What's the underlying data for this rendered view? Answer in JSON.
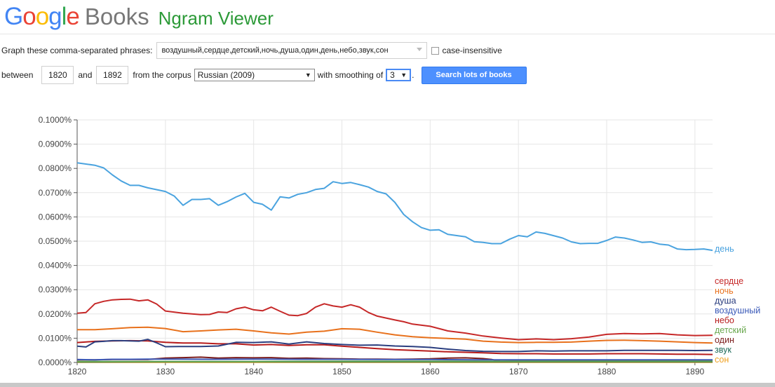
{
  "header": {
    "logo_letters": [
      {
        "ch": "G",
        "color": "#4285f4"
      },
      {
        "ch": "o",
        "color": "#ea4335"
      },
      {
        "ch": "o",
        "color": "#fbbc05"
      },
      {
        "ch": "g",
        "color": "#4285f4"
      },
      {
        "ch": "l",
        "color": "#34a853"
      },
      {
        "ch": "e",
        "color": "#ea4335"
      }
    ],
    "books": "Books",
    "ngram": "Ngram Viewer"
  },
  "controls": {
    "graph_label": "Graph these comma-separated phrases:",
    "phrases_value": "воздушный,сердце,детский,ночь,душа,один,день,небо,звук,сон",
    "case_label": "case-insensitive",
    "between_label": "between",
    "year_start": "1820",
    "and_label": "and",
    "year_end": "1892",
    "corpus_label": "from the corpus",
    "corpus_value": "Russian (2009)",
    "smoothing_label": "with smoothing of",
    "smoothing_value": "3",
    "period": ".",
    "search_button": "Search lots of books"
  },
  "chart_data": {
    "type": "line",
    "xlim": [
      1820,
      1892
    ],
    "ylim": [
      0,
      0.1
    ],
    "y_ticks": [
      "0.0000%",
      "0.0100%",
      "0.0200%",
      "0.0300%",
      "0.0400%",
      "0.0500%",
      "0.0600%",
      "0.0700%",
      "0.0800%",
      "0.0900%",
      "0.1000%"
    ],
    "x_ticks": [
      "1820",
      "1830",
      "1840",
      "1850",
      "1860",
      "1870",
      "1880",
      "1890"
    ],
    "grid": true,
    "legend": "right, at line ends",
    "series": [
      {
        "name": "день",
        "color": "#4aa3df",
        "x": [
          1820,
          1822,
          1823,
          1824,
          1825,
          1826,
          1827,
          1828,
          1830,
          1831,
          1832,
          1833,
          1834,
          1835,
          1836,
          1837,
          1838,
          1839,
          1840,
          1841,
          1842,
          1843,
          1844,
          1845,
          1846,
          1847,
          1848,
          1849,
          1850,
          1851,
          1852,
          1853,
          1854,
          1855,
          1856,
          1857,
          1858,
          1859,
          1860,
          1861,
          1862,
          1864,
          1865,
          1866,
          1867,
          1868,
          1869,
          1870,
          1871,
          1872,
          1873,
          1875,
          1876,
          1877,
          1878,
          1879,
          1880,
          1881,
          1882,
          1883,
          1884,
          1885,
          1886,
          1887,
          1888,
          1889,
          1890,
          1891,
          1892
        ],
        "values": [
          0.0823,
          0.0813,
          0.0802,
          0.0773,
          0.0748,
          0.073,
          0.073,
          0.072,
          0.0705,
          0.0686,
          0.0648,
          0.0672,
          0.0672,
          0.0675,
          0.0648,
          0.0663,
          0.0682,
          0.0697,
          0.066,
          0.0652,
          0.0628,
          0.0683,
          0.0678,
          0.0693,
          0.07,
          0.0713,
          0.0718,
          0.0745,
          0.0738,
          0.0742,
          0.0733,
          0.0723,
          0.0705,
          0.0695,
          0.066,
          0.061,
          0.058,
          0.0556,
          0.0545,
          0.0547,
          0.0528,
          0.0518,
          0.0498,
          0.0495,
          0.049,
          0.049,
          0.0508,
          0.0523,
          0.0518,
          0.0538,
          0.0532,
          0.0513,
          0.0497,
          0.049,
          0.0491,
          0.0491,
          0.0503,
          0.0517,
          0.0513,
          0.0505,
          0.0495,
          0.0497,
          0.0488,
          0.0484,
          0.0468,
          0.0465,
          0.0466,
          0.0468,
          0.0462
        ]
      },
      {
        "name": "сердце",
        "color": "#c62828",
        "x": [
          1820,
          1821,
          1822,
          1823,
          1824,
          1825,
          1826,
          1827,
          1828,
          1829,
          1830,
          1832,
          1834,
          1835,
          1836,
          1837,
          1838,
          1839,
          1840,
          1841,
          1842,
          1843,
          1844,
          1845,
          1846,
          1847,
          1848,
          1849,
          1850,
          1851,
          1852,
          1853,
          1854,
          1856,
          1857,
          1858,
          1860,
          1862,
          1864,
          1866,
          1868,
          1870,
          1872,
          1874,
          1876,
          1878,
          1880,
          1882,
          1884,
          1886,
          1888,
          1890,
          1892
        ],
        "values": [
          0.0203,
          0.0206,
          0.0242,
          0.0252,
          0.0258,
          0.026,
          0.0261,
          0.0254,
          0.0258,
          0.0241,
          0.0212,
          0.0203,
          0.0197,
          0.0198,
          0.0208,
          0.0206,
          0.0221,
          0.0228,
          0.0217,
          0.0213,
          0.0228,
          0.0211,
          0.0195,
          0.0193,
          0.0202,
          0.0228,
          0.0242,
          0.0233,
          0.0228,
          0.0238,
          0.0228,
          0.0206,
          0.0191,
          0.0175,
          0.0168,
          0.0158,
          0.0149,
          0.013,
          0.0121,
          0.0109,
          0.0101,
          0.0094,
          0.0097,
          0.0094,
          0.0098,
          0.0105,
          0.0116,
          0.0119,
          0.0118,
          0.0119,
          0.0114,
          0.0111,
          0.0112
        ]
      },
      {
        "name": "ночь",
        "color": "#e8711c",
        "x": [
          1820,
          1822,
          1824,
          1826,
          1828,
          1830,
          1832,
          1834,
          1836,
          1838,
          1840,
          1842,
          1844,
          1846,
          1848,
          1850,
          1852,
          1854,
          1856,
          1858,
          1860,
          1862,
          1864,
          1866,
          1868,
          1870,
          1872,
          1874,
          1876,
          1878,
          1880,
          1882,
          1884,
          1886,
          1888,
          1890,
          1892
        ],
        "values": [
          0.0135,
          0.0135,
          0.0139,
          0.0144,
          0.0145,
          0.014,
          0.0127,
          0.013,
          0.0134,
          0.0137,
          0.013,
          0.0122,
          0.0117,
          0.0125,
          0.0129,
          0.0139,
          0.0137,
          0.0125,
          0.0114,
          0.0106,
          0.0102,
          0.0099,
          0.0096,
          0.0088,
          0.0084,
          0.0082,
          0.0083,
          0.0083,
          0.0084,
          0.0088,
          0.0091,
          0.0092,
          0.009,
          0.0088,
          0.0085,
          0.0082,
          0.008
        ]
      },
      {
        "name": "душа",
        "color": "#2b3e7f",
        "x": [
          1820,
          1821,
          1822,
          1823,
          1824,
          1825,
          1826,
          1827,
          1828,
          1829,
          1830,
          1832,
          1834,
          1836,
          1838,
          1840,
          1842,
          1844,
          1846,
          1848,
          1850,
          1852,
          1854,
          1856,
          1858,
          1860,
          1862,
          1864,
          1866,
          1868,
          1870,
          1872,
          1874,
          1876,
          1878,
          1880,
          1882,
          1884,
          1886,
          1888,
          1890,
          1892
        ],
        "values": [
          0.0067,
          0.0064,
          0.0085,
          0.0087,
          0.009,
          0.009,
          0.0089,
          0.0088,
          0.0095,
          0.0081,
          0.0065,
          0.0066,
          0.0066,
          0.0068,
          0.0083,
          0.0082,
          0.0085,
          0.0076,
          0.0085,
          0.0078,
          0.0074,
          0.0071,
          0.0072,
          0.0068,
          0.0066,
          0.0062,
          0.0055,
          0.0049,
          0.0046,
          0.0045,
          0.0045,
          0.0048,
          0.0047,
          0.0048,
          0.0048,
          0.0048,
          0.005,
          0.005,
          0.005,
          0.005,
          0.0049,
          0.005
        ]
      },
      {
        "name": "воздушный",
        "color": "#3b5ab8",
        "x": [
          1820,
          1822,
          1824,
          1826,
          1828,
          1830,
          1835,
          1840,
          1845,
          1850,
          1855,
          1860,
          1865,
          1870,
          1875,
          1880,
          1885,
          1890,
          1892
        ],
        "values": [
          0.0012,
          0.0011,
          0.0013,
          0.0013,
          0.0014,
          0.0014,
          0.0013,
          0.0014,
          0.0013,
          0.0013,
          0.0012,
          0.0012,
          0.0011,
          0.0011,
          0.0011,
          0.0011,
          0.0011,
          0.0011,
          0.0011
        ]
      },
      {
        "name": "небо",
        "color": "#b71c1c",
        "x": [
          1820,
          1822,
          1824,
          1826,
          1828,
          1830,
          1832,
          1834,
          1836,
          1838,
          1840,
          1842,
          1844,
          1846,
          1848,
          1850,
          1852,
          1854,
          1856,
          1858,
          1860,
          1862,
          1864,
          1866,
          1868,
          1870,
          1872,
          1874,
          1876,
          1878,
          1880,
          1882,
          1884,
          1886,
          1888,
          1890,
          1892
        ],
        "values": [
          0.0082,
          0.0087,
          0.0089,
          0.009,
          0.0089,
          0.0083,
          0.008,
          0.008,
          0.0077,
          0.0077,
          0.0072,
          0.0074,
          0.007,
          0.0073,
          0.0073,
          0.0067,
          0.0062,
          0.0057,
          0.0053,
          0.005,
          0.0047,
          0.0044,
          0.0042,
          0.004,
          0.0037,
          0.0036,
          0.0036,
          0.0035,
          0.0035,
          0.0035,
          0.0036,
          0.0036,
          0.0036,
          0.0035,
          0.0034,
          0.0034,
          0.0033
        ]
      },
      {
        "name": "детский",
        "color": "#6aa84f",
        "x": [
          1820,
          1830,
          1840,
          1850,
          1860,
          1870,
          1880,
          1892
        ],
        "values": [
          0.0004,
          0.0004,
          0.0004,
          0.0005,
          0.0005,
          0.0005,
          0.0005,
          0.0005
        ]
      },
      {
        "name": "один",
        "color": "#7b1c1c",
        "x": [
          1820,
          1822,
          1824,
          1826,
          1828,
          1830,
          1832,
          1834,
          1836,
          1838,
          1840,
          1842,
          1844,
          1846,
          1848,
          1850,
          1852,
          1854,
          1856,
          1858,
          1860,
          1862,
          1864,
          1866,
          1867,
          1868,
          1870,
          1872,
          1874,
          1876,
          1878,
          1880,
          1882,
          1884,
          1886,
          1888,
          1890,
          1892
        ],
        "values": [
          0.0011,
          0.0011,
          0.0012,
          0.0012,
          0.0012,
          0.0018,
          0.002,
          0.0022,
          0.0018,
          0.002,
          0.0019,
          0.002,
          0.0017,
          0.0018,
          0.0016,
          0.0015,
          0.0014,
          0.0014,
          0.0013,
          0.0014,
          0.0015,
          0.0018,
          0.0019,
          0.0016,
          0.0012,
          0.0005,
          0.0006,
          0.0007,
          0.0008,
          0.0008,
          0.0008,
          0.0009,
          0.0009,
          0.0009,
          0.0008,
          0.0008,
          0.0008,
          0.0008
        ]
      },
      {
        "name": "звук",
        "color": "#1f6b5a",
        "x": [
          1820,
          1830,
          1840,
          1850,
          1860,
          1870,
          1880,
          1892
        ],
        "values": [
          0.0002,
          0.0003,
          0.0003,
          0.0003,
          0.0003,
          0.0003,
          0.0003,
          0.0003
        ]
      },
      {
        "name": "сон",
        "color": "#f0a020",
        "x": [
          1820,
          1830,
          1840,
          1850,
          1860,
          1870,
          1880,
          1892
        ],
        "values": [
          0.0001,
          0.0001,
          0.0001,
          0.0001,
          0.0001,
          0.0001,
          0.0001,
          0.0001
        ]
      }
    ]
  }
}
